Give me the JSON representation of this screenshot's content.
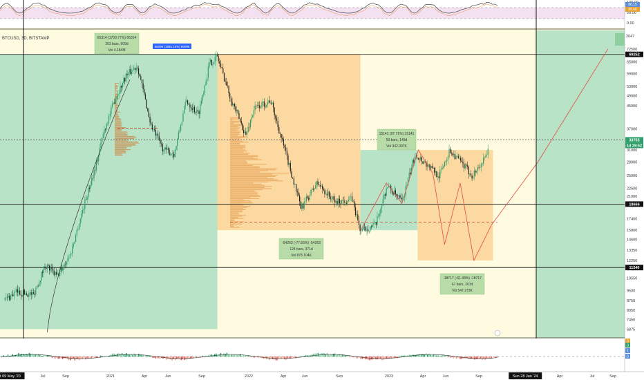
{
  "symbol": "BTCUSD, 3D, BITSTAMP",
  "osc_labels": [
    "100.00",
    "50.00",
    "0.00"
  ],
  "osc_badges": [
    "80.15",
    "95.60"
  ],
  "price_ticks": [
    "72500",
    "65000",
    "59000",
    "53000",
    "49000",
    "45000",
    "37000",
    "31000",
    "28000",
    "25000",
    "22500",
    "21000",
    "17400",
    "15800",
    "14600",
    "13350",
    "12250",
    "10550",
    "9500",
    "8750",
    "8050",
    "7450",
    "6875"
  ],
  "price_badges": {
    "top": "69252",
    "current": "33755",
    "countdown": "1d 29:52",
    "level": "19666",
    "bottom": "11540",
    "corner": "2047"
  },
  "x_ticks": [
    "Jul",
    "Sep",
    "2021",
    "Apr",
    "Jun",
    "Sep",
    "2022",
    "Apr",
    "Jun",
    "Sep",
    "2023",
    "Apr",
    "Jun",
    "Sep",
    "Apr",
    "Jul",
    "Sep"
  ],
  "x_badges": [
    "Sat 09 May '20",
    "Sun 28 Jan '24"
  ],
  "small_tag": "66096 (1855.15%) 66096",
  "stats": {
    "rally": [
      "65314 (1700.77%) 65314",
      "203 bars, 609d",
      "Vol 4.184M"
    ],
    "bear": [
      "-54263 (-77.66%) -54263",
      "124 bars, 371d",
      "Vol 878.104K"
    ],
    "recovery": [
      "15141 (97.71%) 15141",
      "50 bars, 149d",
      "Vol 342.007K"
    ],
    "projection": [
      "-18717 (-61.48%) -18717",
      "67 bars, 201d",
      "Vol 547.273K"
    ]
  },
  "lower_badges": [
    "3",
    "0",
    "1",
    "0"
  ],
  "chart_data": {
    "type": "candlestick",
    "title": "BTCUSD, 3D, BITSTAMP",
    "y_scale": "log",
    "ylim": [
      6500,
      75000
    ],
    "xlim": [
      "2020-04-18",
      "2024-10-15"
    ],
    "x_grid_dates": [
      "2020-05-09",
      "2024-01-28"
    ],
    "series": [
      {
        "values": [
          [
            "2020-05-01",
            8800
          ],
          [
            "2020-06-01",
            9400
          ],
          [
            "2020-07-15",
            9200
          ],
          [
            "2020-08-15",
            11800
          ],
          [
            "2020-09-15",
            10700
          ],
          [
            "2020-10-20",
            12900
          ],
          [
            "2020-11-20",
            18500
          ],
          [
            "2020-12-31",
            29000
          ],
          [
            "2021-01-15",
            36000
          ],
          [
            "2021-02-15",
            48000
          ],
          [
            "2021-03-15",
            58000
          ],
          [
            "2021-04-14",
            63000
          ],
          [
            "2021-05-20",
            38000
          ],
          [
            "2021-06-22",
            31000
          ],
          [
            "2021-07-20",
            30000
          ],
          [
            "2021-08-20",
            47000
          ],
          [
            "2021-09-21",
            42000
          ],
          [
            "2021-10-20",
            64000
          ],
          [
            "2021-11-10",
            68000
          ],
          [
            "2021-12-15",
            48000
          ],
          [
            "2022-01-24",
            35000
          ],
          [
            "2022-02-15",
            44000
          ],
          [
            "2022-03-30",
            47000
          ],
          [
            "2022-05-12",
            29000
          ],
          [
            "2022-06-18",
            19000
          ],
          [
            "2022-07-30",
            23500
          ],
          [
            "2022-09-15",
            20000
          ],
          [
            "2022-10-30",
            20500
          ],
          [
            "2022-11-21",
            15700
          ],
          [
            "2022-12-31",
            16500
          ],
          [
            "2023-01-30",
            23000
          ],
          [
            "2023-03-10",
            20000
          ],
          [
            "2023-04-14",
            30000
          ],
          [
            "2023-06-15",
            25000
          ],
          [
            "2023-07-14",
            31000
          ],
          [
            "2023-09-11",
            25000
          ],
          [
            "2023-10-20",
            29500
          ],
          [
            "2023-10-24",
            33755
          ]
        ]
      }
    ],
    "projection_path": [
      [
        "2022-11-21",
        15700
      ],
      [
        "2023-01-28",
        23500
      ],
      [
        "2023-03-10",
        19800
      ],
      [
        "2023-04-22",
        31000
      ],
      [
        "2023-05-30",
        25500
      ],
      [
        "2023-06-30",
        14000
      ],
      [
        "2023-08-10",
        23500
      ],
      [
        "2023-09-15",
        12250
      ],
      [
        "2023-10-31",
        16500
      ],
      [
        "2024-03-01",
        28000
      ],
      [
        "2024-09-01",
        72500
      ]
    ],
    "zones": [
      {
        "label": "rally",
        "start": "2020-04-18",
        "end": "2021-11-10",
        "low": 6875,
        "high": 69252
      },
      {
        "label": "bear",
        "start": "2021-11-10",
        "end": "2022-11-21",
        "low": 15800,
        "high": 69252
      },
      {
        "label": "recovery",
        "start": "2022-11-21",
        "end": "2023-04-20",
        "low": 15800,
        "high": 31000
      },
      {
        "label": "projection",
        "start": "2023-04-20",
        "end": "2023-11-04",
        "low": 12250,
        "high": 31000
      }
    ],
    "levels": [
      69252,
      33755,
      19666,
      11540
    ]
  }
}
